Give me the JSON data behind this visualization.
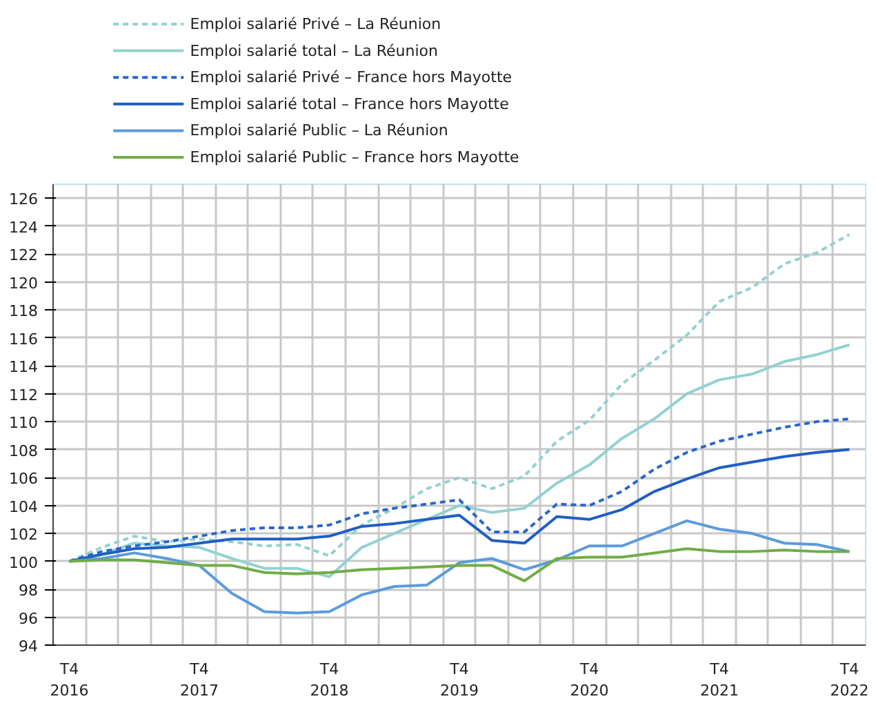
{
  "chart_data": {
    "type": "line",
    "categories": [
      "T4\n2016",
      null,
      null,
      null,
      "T4\n2017",
      null,
      null,
      null,
      "T4\n2018",
      null,
      null,
      null,
      "T4\n2019",
      null,
      null,
      null,
      "T4\n2020",
      null,
      null,
      null,
      "T4\n2021",
      null,
      null,
      null,
      "T4\n2022"
    ],
    "series": [
      {
        "name": "Emploi salarié Privé – La Réunion",
        "color": "#93d1d1",
        "line_style": "dashed",
        "values": [
          100,
          101,
          101.8,
          101.4,
          101.6,
          101.4,
          101.1,
          101.2,
          100.4,
          102.6,
          103.8,
          105.2,
          106.0,
          105.2,
          106.1,
          108.6,
          110.1,
          112.7,
          114.4,
          116.2,
          118.6,
          119.6,
          121.3,
          122.1,
          123.4
        ]
      },
      {
        "name": "Emploi salarié total – La Réunion",
        "color": "#93d1d1",
        "line_style": "solid",
        "values": [
          100,
          100.5,
          101.3,
          101.1,
          101.0,
          100.2,
          99.5,
          99.5,
          98.9,
          101.0,
          102.0,
          103.0,
          104.0,
          103.5,
          103.8,
          105.6,
          106.9,
          108.8,
          110.2,
          112.0,
          113.0,
          113.4,
          114.3,
          114.8,
          115.5
        ]
      },
      {
        "name": "Emploi salarié Privé – France hors Mayotte",
        "color": "#2a66cc",
        "line_style": "dashed",
        "values": [
          100,
          100.7,
          101.1,
          101.4,
          101.8,
          102.2,
          102.4,
          102.4,
          102.6,
          103.4,
          103.8,
          104.1,
          104.4,
          102.1,
          102.1,
          104.1,
          104.0,
          105.0,
          106.6,
          107.8,
          108.6,
          109.1,
          109.6,
          110.0,
          110.2
        ]
      },
      {
        "name": "Emploi salarié total – France hors Mayotte",
        "color": "#1f5fc4",
        "line_style": "solid",
        "values": [
          100,
          100.5,
          100.9,
          101.0,
          101.3,
          101.6,
          101.6,
          101.6,
          101.8,
          102.5,
          102.7,
          103.0,
          103.3,
          101.5,
          101.3,
          103.2,
          103.0,
          103.7,
          105.0,
          105.9,
          106.7,
          107.1,
          107.5,
          107.8,
          108.0
        ]
      },
      {
        "name": "Emploi salarié Public – La Réunion",
        "color": "#5b9bdc",
        "line_style": "solid",
        "values": [
          100,
          100.2,
          100.6,
          100.2,
          99.7,
          97.7,
          96.4,
          96.3,
          96.4,
          97.6,
          98.2,
          98.3,
          99.9,
          100.2,
          99.4,
          100.1,
          101.1,
          101.1,
          102.0,
          102.9,
          102.3,
          102.0,
          101.3,
          101.2,
          100.7
        ]
      },
      {
        "name": "Emploi salarié Public – France hors Mayotte",
        "color": "#70ad47",
        "line_style": "solid",
        "values": [
          100,
          100.1,
          100.1,
          99.9,
          99.7,
          99.7,
          99.2,
          99.1,
          99.2,
          99.4,
          99.5,
          99.6,
          99.7,
          99.7,
          98.6,
          100.2,
          100.3,
          100.3,
          100.6,
          100.9,
          100.7,
          100.7,
          100.8,
          100.7,
          100.7
        ]
      }
    ],
    "ylim": [
      94,
      127
    ],
    "yticks": [
      94,
      96,
      98,
      100,
      102,
      104,
      106,
      108,
      110,
      112,
      114,
      116,
      118,
      120,
      122,
      124,
      126
    ],
    "grid": true,
    "legend": "top",
    "marker": "none"
  }
}
